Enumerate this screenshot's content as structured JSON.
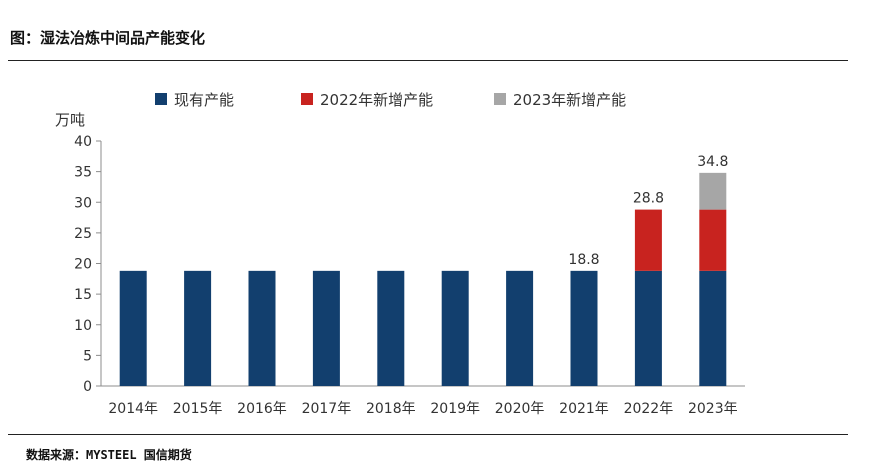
{
  "figure": {
    "title": "图：湿法冶炼中间品产能变化",
    "source": "数据来源：MYSTEEL 国信期货"
  },
  "colors": {
    "existing": "#123f6e",
    "new_2022": "#c8231f",
    "new_2023": "#a6a6a6"
  },
  "chart_data": {
    "type": "bar",
    "stacked": true,
    "categories": [
      "2014年",
      "2015年",
      "2016年",
      "2017年",
      "2018年",
      "2019年",
      "2020年",
      "2021年",
      "2022年",
      "2023年"
    ],
    "series": [
      {
        "name": "现有产能",
        "values": [
          18.8,
          18.8,
          18.8,
          18.8,
          18.8,
          18.8,
          18.8,
          18.8,
          18.8,
          18.8
        ]
      },
      {
        "name": "2022年新增产能",
        "values": [
          0,
          0,
          0,
          0,
          0,
          0,
          0,
          0,
          10,
          10
        ]
      },
      {
        "name": "2023年新增产能",
        "values": [
          0,
          0,
          0,
          0,
          0,
          0,
          0,
          0,
          0,
          6
        ]
      }
    ],
    "data_labels": [
      {
        "category": "2021年",
        "text": "18.8"
      },
      {
        "category": "2022年",
        "text": "28.8"
      },
      {
        "category": "2023年",
        "text": "34.8"
      }
    ],
    "ylabel": "万吨",
    "ylim": [
      0,
      40
    ],
    "yticks": [
      0,
      5,
      10,
      15,
      20,
      25,
      30,
      35,
      40
    ],
    "grid": false,
    "legend": "top"
  }
}
